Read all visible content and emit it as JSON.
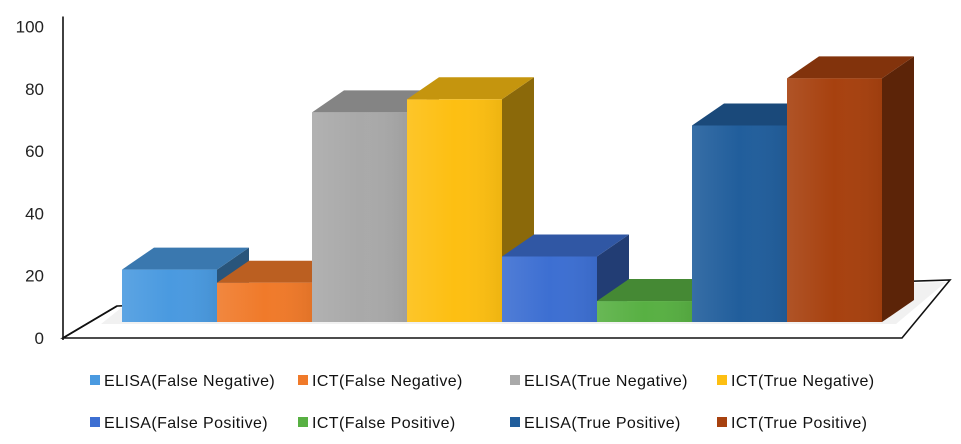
{
  "chart_data": {
    "type": "bar",
    "style": "3d-columns",
    "title": "",
    "xlabel": "",
    "ylabel": "",
    "ylim": [
      0,
      100
    ],
    "yticks": [
      0,
      20,
      40,
      60,
      80,
      100
    ],
    "grid": false,
    "legend_position": "bottom",
    "series": [
      {
        "name": "ELISA(False Negative)",
        "value": 20,
        "color": "#4a9ae0"
      },
      {
        "name": "ICT(False Negative)",
        "value": 15,
        "color": "#f07a2a"
      },
      {
        "name": "ELISA(True Negative)",
        "value": 80,
        "color": "#a9a9a9"
      },
      {
        "name": "ICT(True Negative)",
        "value": 85,
        "color": "#fdbf12"
      },
      {
        "name": "ELISA(False Positive)",
        "value": 25,
        "color": "#3d6fd2"
      },
      {
        "name": "ICT(False Positive)",
        "value": 8,
        "color": "#58b043"
      },
      {
        "name": "ELISA(True Positive)",
        "value": 75,
        "color": "#215e9c"
      },
      {
        "name": "ICT(True Positive)",
        "value": 93,
        "color": "#a7410f"
      }
    ]
  }
}
